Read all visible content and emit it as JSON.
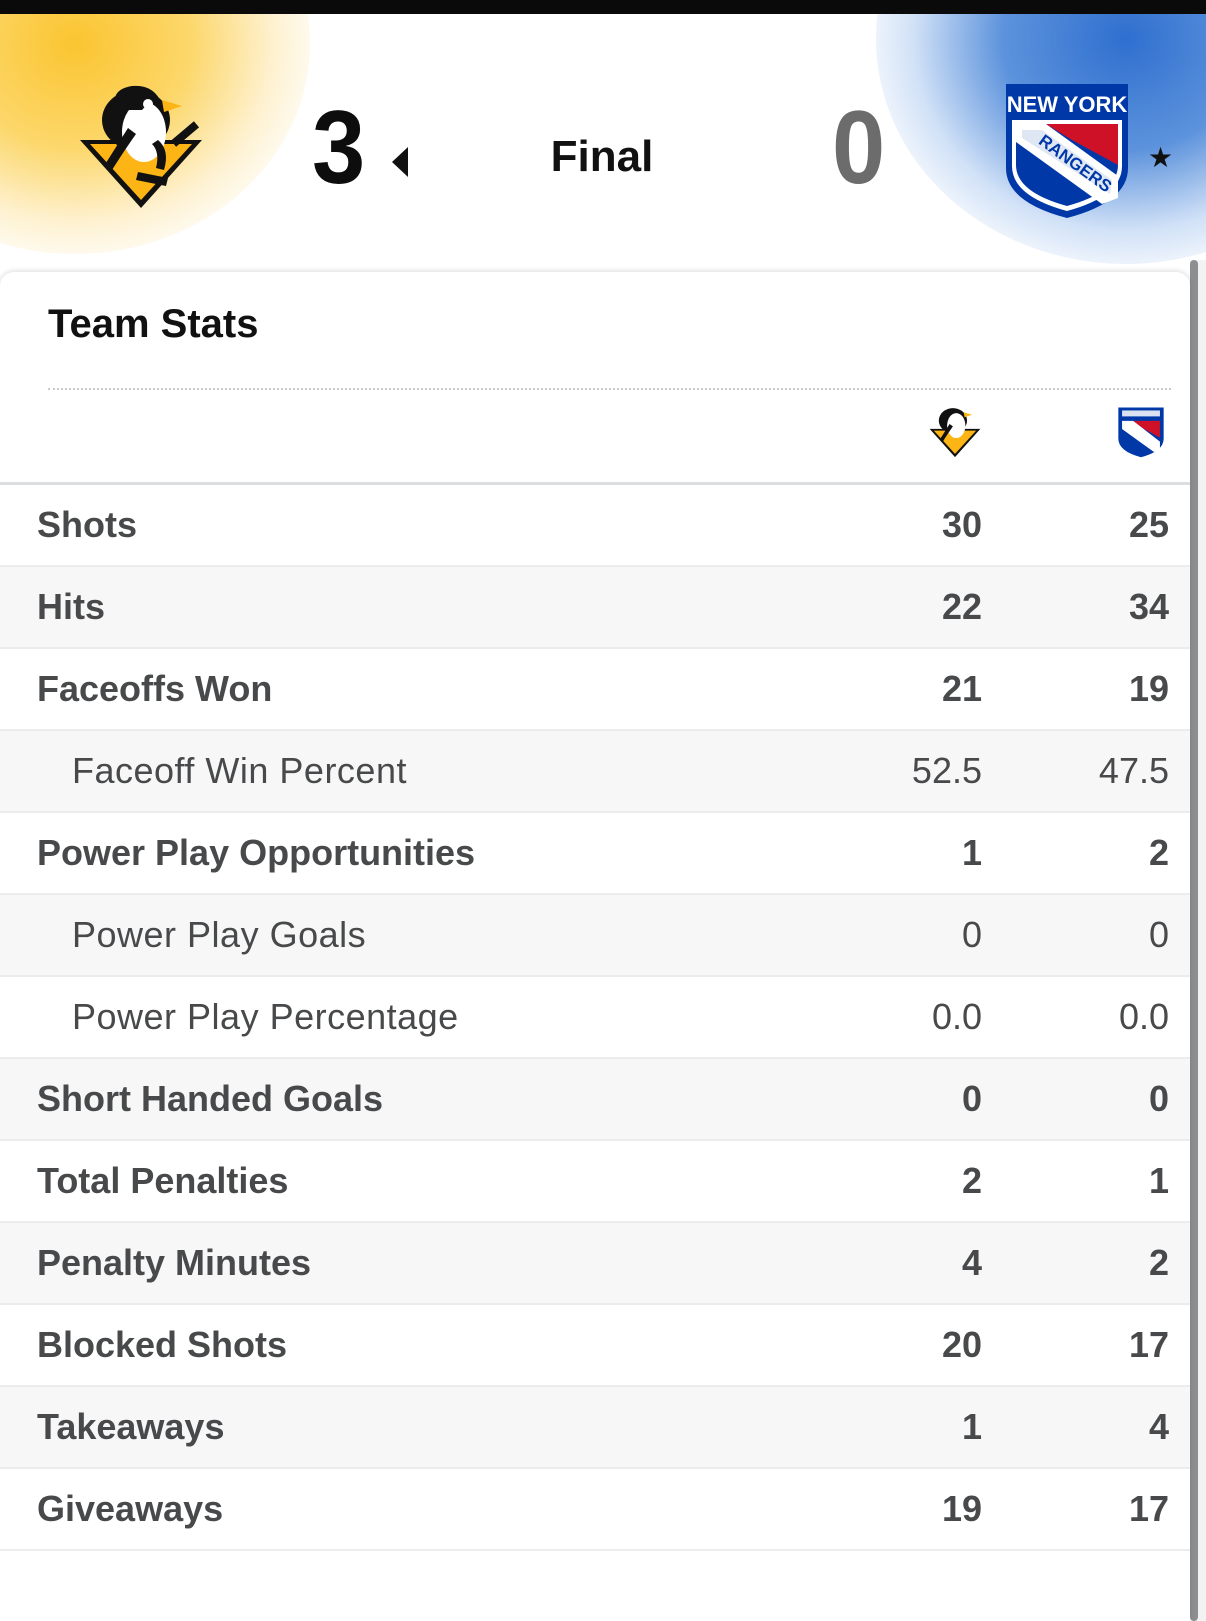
{
  "game": {
    "status": "Final",
    "home": {
      "team": "Pittsburgh Penguins",
      "logo_icon": "penguins-logo-icon",
      "score": "3",
      "color": "#fcb514"
    },
    "away": {
      "team": "New York Rangers",
      "logo_icon": "rangers-logo-icon",
      "score": "0",
      "color": "#0038a8",
      "logo_text_top": "NEW YORK",
      "logo_text_band": "RANGERS"
    },
    "winner_indicator_icon": "triangle-left-icon",
    "favorite_icon": "star-icon",
    "favorite_glyph": "★"
  },
  "team_stats": {
    "title": "Team Stats",
    "rows": [
      {
        "label": "Shots",
        "home": "30",
        "away": "25",
        "sub": false
      },
      {
        "label": "Hits",
        "home": "22",
        "away": "34",
        "sub": false
      },
      {
        "label": "Faceoffs Won",
        "home": "21",
        "away": "19",
        "sub": false
      },
      {
        "label": "Faceoff Win Percent",
        "home": "52.5",
        "away": "47.5",
        "sub": true
      },
      {
        "label": "Power Play Opportunities",
        "home": "1",
        "away": "2",
        "sub": false
      },
      {
        "label": "Power Play Goals",
        "home": "0",
        "away": "0",
        "sub": true
      },
      {
        "label": "Power Play Percentage",
        "home": "0.0",
        "away": "0.0",
        "sub": true
      },
      {
        "label": "Short Handed Goals",
        "home": "0",
        "away": "0",
        "sub": false
      },
      {
        "label": "Total Penalties",
        "home": "2",
        "away": "1",
        "sub": false
      },
      {
        "label": "Penalty Minutes",
        "home": "4",
        "away": "2",
        "sub": false
      },
      {
        "label": "Blocked Shots",
        "home": "20",
        "away": "17",
        "sub": false
      },
      {
        "label": "Takeaways",
        "home": "1",
        "away": "4",
        "sub": false
      },
      {
        "label": "Giveaways",
        "home": "19",
        "away": "17",
        "sub": false
      }
    ]
  }
}
